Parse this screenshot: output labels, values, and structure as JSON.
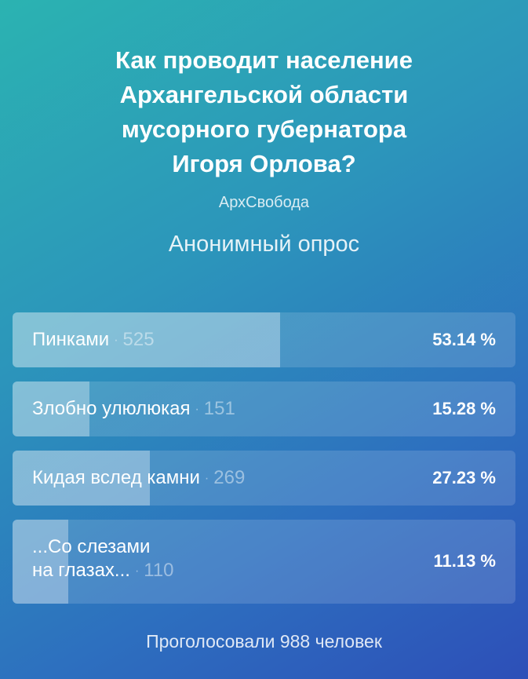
{
  "poll": {
    "title_lines": [
      "Как проводит население",
      "Архангельской области",
      "мусорного губернатора",
      "Игоря Орлова?"
    ],
    "source": "АрхСвобода",
    "type": "Анонимный опрос",
    "separator": "·",
    "options": [
      {
        "label": "Пинками",
        "count": "525",
        "percent_text": "53.14 %",
        "fraction": 0.5314
      },
      {
        "label": "Злобно улюлюкая",
        "count": "151",
        "percent_text": "15.28 %",
        "fraction": 0.1528
      },
      {
        "label": "Кидая вслед камни",
        "count": "269",
        "percent_text": "27.23 %",
        "fraction": 0.2723
      },
      {
        "label_lines": [
          "...Со слезами",
          "на глазах..."
        ],
        "count": "110",
        "percent_text": "11.13 %",
        "fraction": 0.1113
      }
    ],
    "total": "Проголосовали 988 человек"
  }
}
